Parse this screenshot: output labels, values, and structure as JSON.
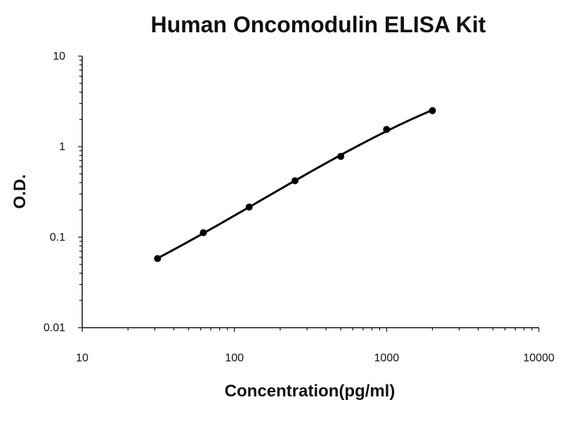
{
  "chart_data": {
    "type": "scatter",
    "title": "Human Oncomodulin ELISA Kit",
    "xlabel": "Concentration(pg/ml)",
    "ylabel": "O.D.",
    "x_scale": "log",
    "y_scale": "log",
    "xlim": [
      10,
      10000
    ],
    "ylim": [
      0.01,
      10
    ],
    "x_ticks": [
      "10",
      "100",
      "1000",
      "10000"
    ],
    "y_ticks": [
      "0.01",
      "0.1",
      "1",
      "10"
    ],
    "grid": false,
    "legend": "none",
    "series": [
      {
        "x": [
          31.25,
          62.5,
          125,
          250,
          500,
          1000,
          2000
        ],
        "y": [
          0.058,
          0.112,
          0.215,
          0.42,
          0.78,
          1.55,
          2.5
        ]
      }
    ]
  }
}
